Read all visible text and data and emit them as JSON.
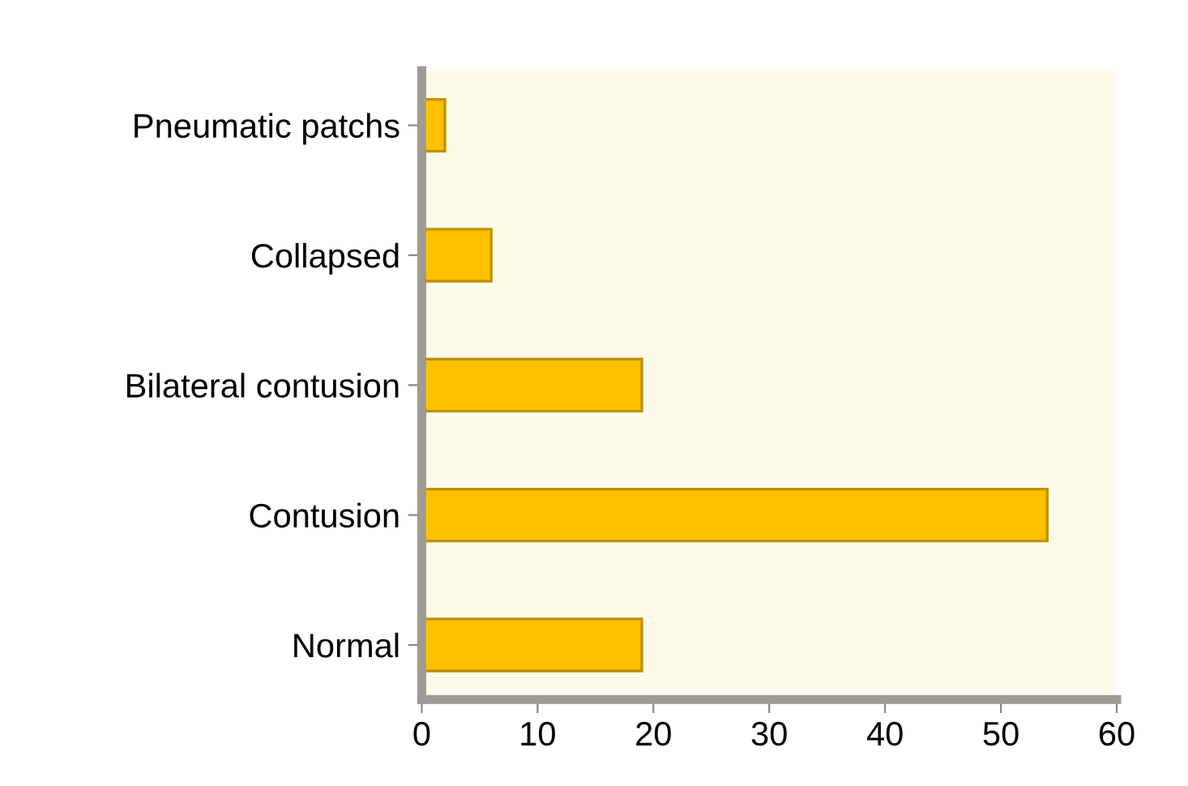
{
  "chart_data": {
    "type": "bar",
    "orientation": "horizontal",
    "categories": [
      "Pneumatic patchs",
      "Collapsed",
      "Bilateral contusion",
      "Contusion",
      "Normal"
    ],
    "values": [
      2,
      6,
      19,
      54,
      19
    ],
    "color": "#ffc000",
    "xlim": [
      0,
      60
    ],
    "xticks": [
      0,
      10,
      20,
      30,
      40,
      50,
      60
    ],
    "grid": false,
    "legend": false
  }
}
